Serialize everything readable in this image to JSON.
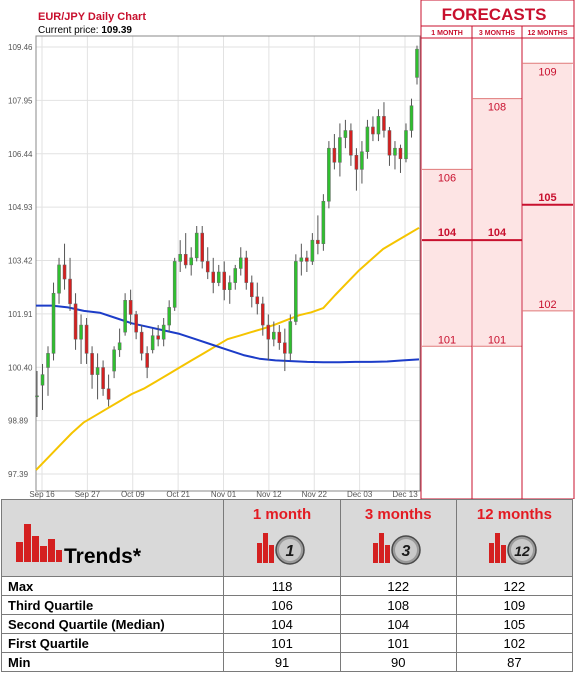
{
  "chart_data": {
    "type": "candlestick",
    "title": "EUR/JPY Daily Chart",
    "current_price_label": "Current price:",
    "current_price": "109.39",
    "y_ticks": [
      "109.46",
      "107.95",
      "106.44",
      "104.93",
      "103.42",
      "101.91",
      "100.40",
      "98.89",
      "97.39"
    ],
    "ylim": [
      97.39,
      109.46
    ],
    "x_ticks": [
      "Sep 16",
      "Sep 27",
      "Oct 09",
      "Oct 21",
      "Nov 01",
      "Nov 12",
      "Nov 22",
      "Dec 03",
      "Dec 13"
    ],
    "candles": [
      {
        "o": 99.6,
        "h": 100.3,
        "l": 99.0,
        "c": 99.6
      },
      {
        "o": 99.9,
        "h": 100.5,
        "l": 99.2,
        "c": 100.2
      },
      {
        "o": 100.4,
        "h": 101.0,
        "l": 99.6,
        "c": 100.8
      },
      {
        "o": 100.8,
        "h": 102.8,
        "l": 100.6,
        "c": 102.5
      },
      {
        "o": 102.5,
        "h": 103.5,
        "l": 102.2,
        "c": 103.3
      },
      {
        "o": 103.3,
        "h": 103.9,
        "l": 102.6,
        "c": 102.9
      },
      {
        "o": 102.9,
        "h": 103.5,
        "l": 102.0,
        "c": 102.2
      },
      {
        "o": 102.2,
        "h": 102.5,
        "l": 100.9,
        "c": 101.2
      },
      {
        "o": 101.2,
        "h": 101.9,
        "l": 100.5,
        "c": 101.6
      },
      {
        "o": 101.6,
        "h": 101.8,
        "l": 100.5,
        "c": 100.8
      },
      {
        "o": 100.8,
        "h": 101.0,
        "l": 99.8,
        "c": 100.2
      },
      {
        "o": 100.2,
        "h": 100.8,
        "l": 99.5,
        "c": 100.4
      },
      {
        "o": 100.4,
        "h": 100.6,
        "l": 99.6,
        "c": 99.8
      },
      {
        "o": 99.8,
        "h": 100.2,
        "l": 99.3,
        "c": 99.5
      },
      {
        "o": 100.3,
        "h": 101.0,
        "l": 100.1,
        "c": 100.9
      },
      {
        "o": 100.9,
        "h": 101.5,
        "l": 100.7,
        "c": 101.1
      },
      {
        "o": 101.4,
        "h": 102.5,
        "l": 101.3,
        "c": 102.3
      },
      {
        "o": 102.3,
        "h": 102.6,
        "l": 101.6,
        "c": 101.9
      },
      {
        "o": 101.9,
        "h": 102.0,
        "l": 101.2,
        "c": 101.4
      },
      {
        "o": 101.4,
        "h": 101.6,
        "l": 100.6,
        "c": 100.8
      },
      {
        "o": 100.8,
        "h": 101.0,
        "l": 100.1,
        "c": 100.4
      },
      {
        "o": 100.9,
        "h": 101.5,
        "l": 100.8,
        "c": 101.3
      },
      {
        "o": 101.3,
        "h": 101.6,
        "l": 101.0,
        "c": 101.2
      },
      {
        "o": 101.2,
        "h": 101.8,
        "l": 101.0,
        "c": 101.6
      },
      {
        "o": 101.6,
        "h": 102.3,
        "l": 101.4,
        "c": 102.1
      },
      {
        "o": 102.1,
        "h": 103.5,
        "l": 102.0,
        "c": 103.4
      },
      {
        "o": 103.4,
        "h": 104.0,
        "l": 103.1,
        "c": 103.6
      },
      {
        "o": 103.6,
        "h": 104.2,
        "l": 103.2,
        "c": 103.3
      },
      {
        "o": 103.3,
        "h": 103.8,
        "l": 103.0,
        "c": 103.5
      },
      {
        "o": 103.5,
        "h": 104.4,
        "l": 103.4,
        "c": 104.2
      },
      {
        "o": 104.2,
        "h": 104.4,
        "l": 103.2,
        "c": 103.4
      },
      {
        "o": 103.4,
        "h": 103.8,
        "l": 102.9,
        "c": 103.1
      },
      {
        "o": 103.1,
        "h": 103.5,
        "l": 102.5,
        "c": 102.8
      },
      {
        "o": 102.8,
        "h": 103.3,
        "l": 102.7,
        "c": 103.1
      },
      {
        "o": 103.1,
        "h": 103.4,
        "l": 102.3,
        "c": 102.6
      },
      {
        "o": 102.6,
        "h": 103.0,
        "l": 102.2,
        "c": 102.8
      },
      {
        "o": 102.8,
        "h": 103.3,
        "l": 102.6,
        "c": 103.2
      },
      {
        "o": 103.2,
        "h": 103.8,
        "l": 103.0,
        "c": 103.5
      },
      {
        "o": 103.5,
        "h": 103.7,
        "l": 102.6,
        "c": 102.8
      },
      {
        "o": 102.8,
        "h": 103.0,
        "l": 102.1,
        "c": 102.4
      },
      {
        "o": 102.4,
        "h": 102.8,
        "l": 101.9,
        "c": 102.2
      },
      {
        "o": 102.2,
        "h": 102.4,
        "l": 101.3,
        "c": 101.6
      },
      {
        "o": 101.6,
        "h": 101.9,
        "l": 100.6,
        "c": 101.2
      },
      {
        "o": 101.2,
        "h": 101.7,
        "l": 101.0,
        "c": 101.4
      },
      {
        "o": 101.4,
        "h": 101.6,
        "l": 100.9,
        "c": 101.1
      },
      {
        "o": 101.1,
        "h": 101.5,
        "l": 100.3,
        "c": 100.8
      },
      {
        "o": 100.8,
        "h": 101.9,
        "l": 100.6,
        "c": 101.7
      },
      {
        "o": 101.7,
        "h": 103.6,
        "l": 101.6,
        "c": 103.4
      },
      {
        "o": 103.4,
        "h": 103.9,
        "l": 103.0,
        "c": 103.5
      },
      {
        "o": 103.5,
        "h": 103.7,
        "l": 103.1,
        "c": 103.4
      },
      {
        "o": 103.4,
        "h": 104.2,
        "l": 103.3,
        "c": 104.0
      },
      {
        "o": 104.0,
        "h": 104.7,
        "l": 103.6,
        "c": 103.9
      },
      {
        "o": 103.9,
        "h": 105.3,
        "l": 103.7,
        "c": 105.1
      },
      {
        "o": 105.1,
        "h": 106.8,
        "l": 104.9,
        "c": 106.6
      },
      {
        "o": 106.6,
        "h": 107.0,
        "l": 106.0,
        "c": 106.2
      },
      {
        "o": 106.2,
        "h": 107.3,
        "l": 105.8,
        "c": 106.9
      },
      {
        "o": 106.9,
        "h": 107.4,
        "l": 106.6,
        "c": 107.1
      },
      {
        "o": 107.1,
        "h": 107.3,
        "l": 106.1,
        "c": 106.4
      },
      {
        "o": 106.4,
        "h": 106.6,
        "l": 105.4,
        "c": 106.0
      },
      {
        "o": 106.0,
        "h": 106.8,
        "l": 105.6,
        "c": 106.5
      },
      {
        "o": 106.5,
        "h": 107.4,
        "l": 106.3,
        "c": 107.2
      },
      {
        "o": 107.2,
        "h": 107.5,
        "l": 106.8,
        "c": 107.0
      },
      {
        "o": 107.0,
        "h": 107.7,
        "l": 106.8,
        "c": 107.5
      },
      {
        "o": 107.5,
        "h": 107.9,
        "l": 106.9,
        "c": 107.1
      },
      {
        "o": 107.1,
        "h": 107.2,
        "l": 106.1,
        "c": 106.4
      },
      {
        "o": 106.4,
        "h": 106.8,
        "l": 106.0,
        "c": 106.6
      },
      {
        "o": 106.6,
        "h": 106.7,
        "l": 105.9,
        "c": 106.3
      },
      {
        "o": 106.3,
        "h": 107.3,
        "l": 106.2,
        "c": 107.1
      },
      {
        "o": 107.1,
        "h": 108.0,
        "l": 106.9,
        "c": 107.8
      },
      {
        "o": 108.6,
        "h": 109.5,
        "l": 108.4,
        "c": 109.4
      }
    ],
    "moving_average_yellow": [
      97.5,
      97.85,
      98.2,
      98.55,
      98.85,
      99.05,
      99.25,
      99.45,
      99.65,
      99.8,
      100.0,
      100.2,
      100.4,
      100.6,
      100.8,
      101.0,
      101.2,
      101.3,
      101.4,
      101.5,
      101.62,
      101.75,
      101.88,
      101.96,
      102.08,
      102.45,
      102.8,
      103.15,
      103.45,
      103.75,
      103.95,
      104.15,
      104.35
    ],
    "moving_average_blue": [
      102.15,
      102.15,
      102.1,
      102.0,
      101.95,
      101.8,
      101.65,
      101.55,
      101.45,
      101.35,
      101.2,
      101.05,
      100.9,
      100.75,
      100.65,
      100.6,
      100.58,
      100.56,
      100.55,
      100.55,
      100.56,
      100.56,
      100.57,
      100.6,
      100.63
    ],
    "forecast": {
      "header": "FORECASTS",
      "columns": [
        {
          "label": "1 MONTH",
          "q3": 106,
          "median": 104,
          "q1": 101
        },
        {
          "label": "3 MONTHS",
          "q3": 108,
          "median": 104,
          "q1": 101
        },
        {
          "label": "12 MONTHS",
          "q3": 109,
          "median": 105,
          "q1": 102
        }
      ]
    }
  },
  "colors": {
    "up_candle": "#2fbf2f",
    "down_candle": "#d42020",
    "ma_yellow": "#f5c400",
    "ma_blue": "#1c3cc8",
    "forecast_red": "#c8102e",
    "forecast_fill": "#fde4e4"
  },
  "table": {
    "trends_label": "Trends*",
    "headers": [
      "1 month",
      "3 months",
      "12 months"
    ],
    "header_icon_digits": [
      "1",
      "3",
      "12"
    ],
    "rows": [
      {
        "label": "Max",
        "values": [
          "118",
          "122",
          "122"
        ]
      },
      {
        "label": "Third Quartile",
        "values": [
          "106",
          "108",
          "109"
        ]
      },
      {
        "label": "Second Quartile (Median)",
        "values": [
          "104",
          "104",
          "105"
        ]
      },
      {
        "label": "First Quartile",
        "values": [
          "101",
          "101",
          "102"
        ]
      },
      {
        "label": "Min",
        "values": [
          "91",
          "90",
          "87"
        ]
      }
    ]
  }
}
